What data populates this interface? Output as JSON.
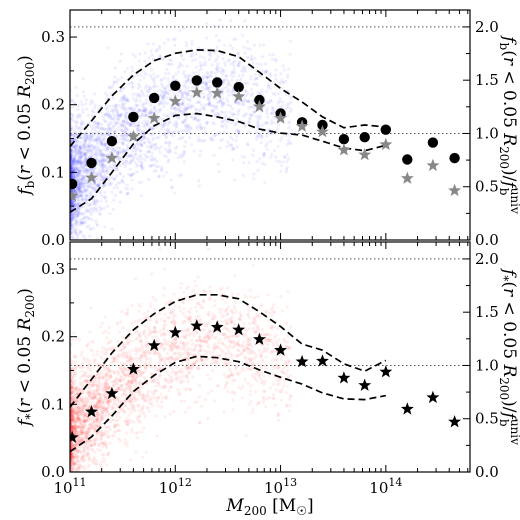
{
  "chart_data": [
    {
      "type": "scatter",
      "panel": "top",
      "x_scale": "log",
      "xlim": [
        100000000000.0,
        630000000000000.0
      ],
      "ylim": [
        0.0,
        0.34
      ],
      "ylabel": "f_b(r < 0.05 R_200)",
      "ylabel_right": "f_b(r < 0.05 R_200) / f_b^univ",
      "y_ticks": [
        "0.0",
        "0.1",
        "0.2",
        "0.3"
      ],
      "y_ticks_right": [
        "0.0",
        "0.5",
        "1.0",
        "1.5",
        "2.0"
      ],
      "right_axis_factor": 0.1575,
      "reference_lines": [
        0.315,
        0.1575
      ],
      "cloud_color": "#3333ff",
      "cloud_trend": {
        "logM": [
          11.0,
          11.2,
          11.4,
          11.6,
          11.8,
          12.0,
          12.2,
          12.4,
          12.6,
          12.8,
          13.0
        ],
        "fb": [
          0.08,
          0.11,
          0.14,
          0.165,
          0.185,
          0.2,
          0.21,
          0.215,
          0.21,
          0.2,
          0.19
        ]
      },
      "series": [
        {
          "marker": "circle",
          "color": "#000000",
          "x": [
            105000000000.0,
            160000000000.0,
            250000000000.0,
            400000000000.0,
            630000000000.0,
            1000000000000.0,
            1600000000000.0,
            2500000000000.0,
            4000000000000.0,
            6300000000000.0,
            10000000000000.0,
            16000000000000.0,
            25000000000000.0,
            40000000000000.0,
            63000000000000.0,
            100000000000000.0,
            160000000000000.0,
            280000000000000.0,
            450000000000000.0
          ],
          "y": [
            0.083,
            0.114,
            0.146,
            0.182,
            0.21,
            0.228,
            0.236,
            0.233,
            0.226,
            0.207,
            0.187,
            0.174,
            0.17,
            0.149,
            0.152,
            0.163,
            0.119,
            0.144,
            0.121
          ]
        },
        {
          "marker": "star",
          "color": "#888888",
          "x": [
            105000000000.0,
            160000000000.0,
            250000000000.0,
            400000000000.0,
            630000000000.0,
            1000000000000.0,
            1600000000000.0,
            2500000000000.0,
            4000000000000.0,
            6300000000000.0,
            10000000000000.0,
            16000000000000.0,
            25000000000000.0,
            40000000000000.0,
            63000000000000.0,
            100000000000000.0,
            160000000000000.0,
            280000000000000.0,
            450000000000000.0
          ],
          "y": [
            0.065,
            0.092,
            0.121,
            0.153,
            0.18,
            0.205,
            0.218,
            0.217,
            0.212,
            0.197,
            0.18,
            0.168,
            0.16,
            0.133,
            0.126,
            0.141,
            0.091,
            0.11,
            0.073
          ]
        }
      ],
      "bands": {
        "upper": {
          "x": [
            100000000000.0,
            160000000000.0,
            250000000000.0,
            400000000000.0,
            630000000000.0,
            1000000000000.0,
            1600000000000.0,
            2500000000000.0,
            4000000000000.0,
            6300000000000.0,
            10000000000000.0,
            16000000000000.0,
            25000000000000.0,
            40000000000000.0,
            63000000000000.0,
            100000000000000.0
          ],
          "y": [
            0.138,
            0.176,
            0.213,
            0.244,
            0.265,
            0.276,
            0.281,
            0.28,
            0.271,
            0.248,
            0.224,
            0.204,
            0.182,
            0.166,
            0.17,
            0.167
          ]
        },
        "lower": {
          "x": [
            100000000000.0,
            160000000000.0,
            250000000000.0,
            400000000000.0,
            630000000000.0,
            1000000000000.0,
            1600000000000.0,
            2500000000000.0,
            4000000000000.0,
            6300000000000.0,
            10000000000000.0,
            16000000000000.0,
            25000000000000.0,
            40000000000000.0,
            63000000000000.0,
            100000000000000.0
          ],
          "y": [
            0.041,
            0.061,
            0.1,
            0.142,
            0.169,
            0.184,
            0.187,
            0.182,
            0.175,
            0.164,
            0.158,
            0.155,
            0.146,
            0.136,
            0.132,
            0.14
          ]
        }
      }
    },
    {
      "type": "scatter",
      "panel": "bottom",
      "x_scale": "log",
      "xlim": [
        100000000000.0,
        630000000000000.0
      ],
      "ylim": [
        0.0,
        0.34
      ],
      "xlabel": "M_200 [M_☉]",
      "x_ticks": [
        "10^11",
        "10^12",
        "10^13",
        "10^14"
      ],
      "ylabel": "f_*(r < 0.05 R_200)",
      "ylabel_right": "f_*(r < 0.05 R_200) / f_b^univ",
      "y_ticks": [
        "0.0",
        "0.1",
        "0.2",
        "0.3"
      ],
      "y_ticks_right": [
        "0.0",
        "0.5",
        "1.0",
        "1.5",
        "2.0"
      ],
      "right_axis_factor": 0.1575,
      "reference_lines": [
        0.315,
        0.1575
      ],
      "cloud_color": "#ff3333",
      "cloud_trend": {
        "logM": [
          11.0,
          11.2,
          11.4,
          11.6,
          11.8,
          12.0,
          12.2,
          12.4,
          12.6,
          12.8,
          13.0
        ],
        "fb": [
          0.055,
          0.085,
          0.115,
          0.145,
          0.17,
          0.185,
          0.195,
          0.195,
          0.19,
          0.18,
          0.17
        ]
      },
      "series": [
        {
          "marker": "star",
          "color": "#000000",
          "x": [
            105000000000.0,
            160000000000.0,
            250000000000.0,
            400000000000.0,
            630000000000.0,
            1000000000000.0,
            1600000000000.0,
            2500000000000.0,
            4000000000000.0,
            6300000000000.0,
            10000000000000.0,
            16000000000000.0,
            25000000000000.0,
            40000000000000.0,
            63000000000000.0,
            100000000000000.0,
            160000000000000.0,
            280000000000000.0,
            450000000000000.0
          ],
          "y": [
            0.051,
            0.089,
            0.116,
            0.152,
            0.187,
            0.206,
            0.216,
            0.214,
            0.21,
            0.196,
            0.18,
            0.163,
            0.164,
            0.139,
            0.128,
            0.148,
            0.093,
            0.11,
            0.074
          ]
        }
      ],
      "bands": {
        "upper": {
          "x": [
            100000000000.0,
            160000000000.0,
            250000000000.0,
            400000000000.0,
            630000000000.0,
            1000000000000.0,
            1600000000000.0,
            2500000000000.0,
            4000000000000.0,
            6300000000000.0,
            10000000000000.0,
            16000000000000.0,
            25000000000000.0,
            40000000000000.0,
            63000000000000.0,
            100000000000000.0
          ],
          "y": [
            0.096,
            0.137,
            0.176,
            0.21,
            0.234,
            0.252,
            0.262,
            0.262,
            0.256,
            0.237,
            0.215,
            0.189,
            0.18,
            0.16,
            0.149,
            0.165
          ]
        },
        "lower": {
          "x": [
            100000000000.0,
            160000000000.0,
            250000000000.0,
            400000000000.0,
            630000000000.0,
            1000000000000.0,
            1600000000000.0,
            2500000000000.0,
            4000000000000.0,
            6300000000000.0,
            10000000000000.0,
            16000000000000.0,
            25000000000000.0,
            40000000000000.0,
            63000000000000.0,
            100000000000000.0
          ],
          "y": [
            0.03,
            0.052,
            0.083,
            0.119,
            0.143,
            0.162,
            0.171,
            0.169,
            0.163,
            0.151,
            0.14,
            0.13,
            0.117,
            0.108,
            0.107,
            0.113
          ]
        }
      }
    }
  ]
}
